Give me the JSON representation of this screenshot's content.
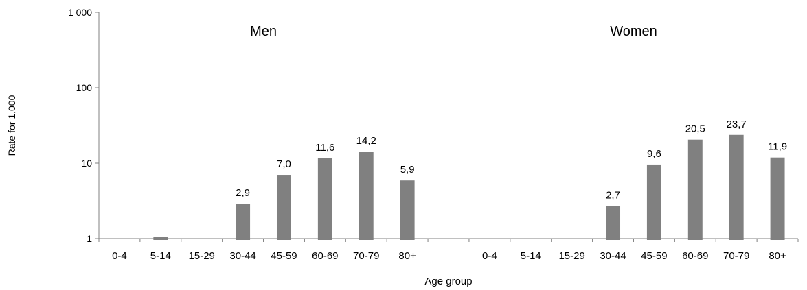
{
  "chart_data": {
    "type": "bar",
    "ylabel": "Rate for 1,000",
    "xlabel": "Age group",
    "yscale": "log",
    "ylim": [
      1,
      1000
    ],
    "yticks": [
      {
        "value": 1,
        "label": "1"
      },
      {
        "value": 10,
        "label": "10"
      },
      {
        "value": 100,
        "label": "100"
      },
      {
        "value": 1000,
        "label": "1 000"
      }
    ],
    "grid": false,
    "bar_color": "#808080",
    "panels": [
      {
        "title": "Men",
        "categories": [
          "0-4",
          "5-14",
          "15-29",
          "30-44",
          "45-59",
          "60-69",
          "70-79",
          "80+"
        ],
        "values": [
          null,
          0.98,
          null,
          2.9,
          7.0,
          11.6,
          14.2,
          5.9
        ],
        "labels": [
          "",
          "",
          "",
          "2,9",
          "7,0",
          "11,6",
          "14,2",
          "5,9"
        ]
      },
      {
        "title": "Women",
        "categories": [
          "0-4",
          "5-14",
          "15-29",
          "30-44",
          "45-59",
          "60-69",
          "70-79",
          "80+"
        ],
        "values": [
          null,
          null,
          null,
          2.7,
          9.6,
          20.5,
          23.7,
          11.9
        ],
        "labels": [
          "",
          "",
          "",
          "2,7",
          "9,6",
          "20,5",
          "23,7",
          "11,9"
        ]
      }
    ]
  }
}
